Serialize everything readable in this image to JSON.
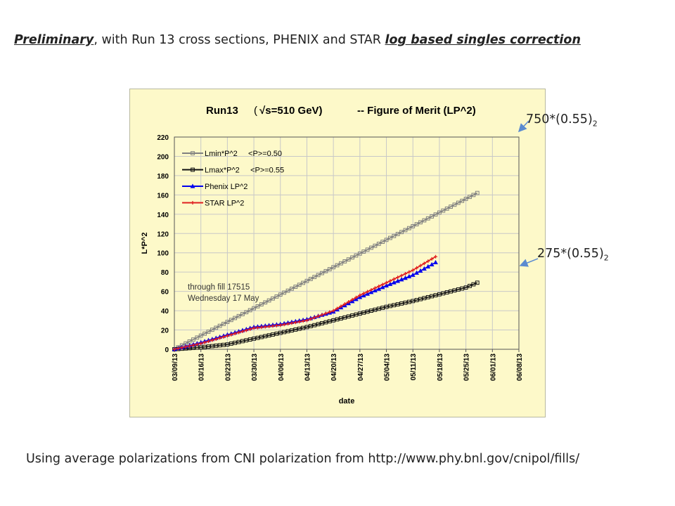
{
  "header": {
    "prefix": "Preliminary",
    "middle": ", with Run 13 cross sections, PHENIX and STAR ",
    "suffix": "log based singles correction"
  },
  "footer": {
    "text": "Using average polarizations from CNI polarization from http://www.phy.bnl.gov/cnipol/fills/"
  },
  "callouts": {
    "upper": {
      "base": "750*(0.55)",
      "exp": "2"
    },
    "lower": {
      "base": "275*(0.55)",
      "exp": "2"
    }
  },
  "chart_data": {
    "type": "line",
    "title_left": "Run13",
    "title_paren": "(",
    "title_sqrt": "√s=510 GeV)",
    "title_right": "-- Figure of Merit  (LP^2)",
    "xlabel": "date",
    "ylabel": "L*P^2",
    "ylim": [
      0,
      220
    ],
    "yticks": [
      0,
      20,
      40,
      60,
      80,
      100,
      120,
      140,
      160,
      180,
      200,
      220
    ],
    "xlim": [
      "03/09/13",
      "06/08/13"
    ],
    "xticks": [
      "03/09/13",
      "03/16/13",
      "03/23/13",
      "03/30/13",
      "04/06/13",
      "04/13/13",
      "04/20/13",
      "04/27/13",
      "05/04/13",
      "05/11/13",
      "05/18/13",
      "05/25/13",
      "06/01/13",
      "06/08/13"
    ],
    "grid": true,
    "legend_position": "top-left",
    "annotation": [
      "through fill 17515",
      "Wednesday 17 May"
    ],
    "series": [
      {
        "name": "Lmin*P^2     <P>=0.50",
        "color": "#808080",
        "marker": "square-open",
        "x": [
          "03/09/13",
          "05/28/13"
        ],
        "y": [
          0,
          162
        ]
      },
      {
        "name": "Lmax*P^2     <P>=0.55",
        "color": "#111111",
        "marker": "square-open",
        "x": [
          "03/09/13",
          "03/16/13",
          "03/23/13",
          "03/30/13",
          "04/06/13",
          "04/13/13",
          "04/20/13",
          "04/27/13",
          "05/04/13",
          "05/11/13",
          "05/18/13",
          "05/25/13",
          "05/28/13"
        ],
        "y": [
          0,
          2,
          5,
          11,
          17,
          23,
          30,
          37,
          44,
          50,
          57,
          64,
          69
        ]
      },
      {
        "name": "Phenix LP^2",
        "color": "#0000ee",
        "marker": "triangle",
        "x": [
          "03/09/13",
          "03/16/13",
          "03/23/13",
          "03/30/13",
          "04/06/13",
          "04/13/13",
          "04/20/13",
          "04/27/13",
          "05/04/13",
          "05/11/13",
          "05/17/13"
        ],
        "y": [
          0,
          7,
          15,
          23,
          26,
          31,
          39,
          54,
          66,
          77,
          90
        ]
      },
      {
        "name": "STAR LP^2",
        "color": "#e02020",
        "marker": "cross",
        "x": [
          "03/09/13",
          "03/16/13",
          "03/23/13",
          "03/30/13",
          "04/06/13",
          "04/13/13",
          "04/20/13",
          "04/27/13",
          "05/04/13",
          "05/11/13",
          "05/17/13"
        ],
        "y": [
          0,
          6,
          14,
          22,
          25,
          30,
          40,
          56,
          69,
          82,
          96
        ]
      }
    ]
  }
}
